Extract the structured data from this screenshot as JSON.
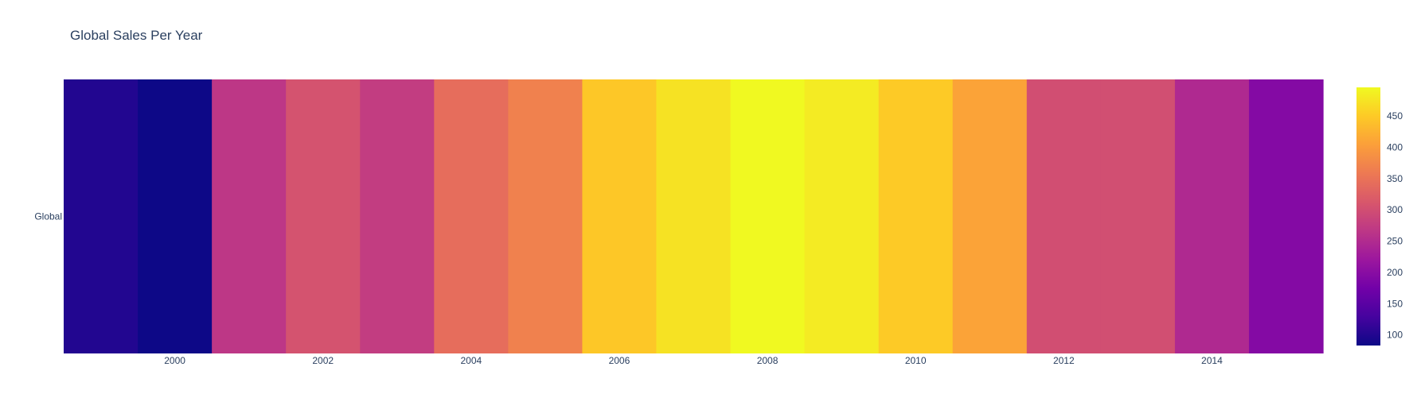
{
  "chart_data": {
    "type": "heatmap",
    "title": "Global Sales Per Year",
    "xlabel": "",
    "ylabel": "",
    "y_categories": [
      "Global"
    ],
    "x": [
      1999,
      2000,
      2001,
      2002,
      2003,
      2004,
      2005,
      2006,
      2007,
      2008,
      2009,
      2010,
      2011,
      2012,
      2013,
      2014,
      2015
    ],
    "x_tick_labels": [
      "2000",
      "2002",
      "2004",
      "2006",
      "2008",
      "2010",
      "2012",
      "2014"
    ],
    "x_tick_values": [
      2000,
      2002,
      2004,
      2006,
      2008,
      2010,
      2012,
      2014
    ],
    "values": [
      [
        100,
        83,
        266,
        306,
        275,
        342,
        368,
        447,
        474,
        496,
        482,
        450,
        409,
        300,
        301,
        247,
        194
      ]
    ],
    "colorscale_name": "Plasma",
    "colorscale": [
      "#0d0887",
      "#46039f",
      "#7201a8",
      "#9c179e",
      "#bd3786",
      "#d8576b",
      "#ed7953",
      "#fb9f3a",
      "#fdca26",
      "#f0f921"
    ],
    "zmin": 83,
    "zmax": 496,
    "colorbar_ticks": [
      100,
      150,
      200,
      250,
      300,
      350,
      400,
      450
    ],
    "colorbar_tick_labels": [
      "100",
      "150",
      "200",
      "250",
      "300",
      "350",
      "400",
      "450"
    ],
    "grid": false,
    "colorbar_position": "right"
  }
}
